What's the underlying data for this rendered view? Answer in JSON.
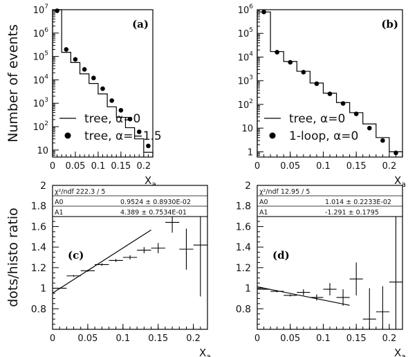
{
  "chart_data": [
    {
      "id": "a",
      "type": "histogram",
      "panel_label": "(a)",
      "ylabel": "Number of events",
      "xlabel": "X",
      "xlabel_sub": "a",
      "xlim": [
        0,
        0.22
      ],
      "ylim": [
        5,
        10000000
      ],
      "yscale": "log",
      "xticks": [
        "0",
        "0.05",
        "0.1",
        "0.15",
        "0.2"
      ],
      "yticks": [
        {
          "v": 10,
          "l": "10",
          "e": ""
        },
        {
          "v": 100,
          "l": "10",
          "e": "2"
        },
        {
          "v": 1000,
          "l": "10",
          "e": "3"
        },
        {
          "v": 10000,
          "l": "10",
          "e": "4"
        },
        {
          "v": 100000,
          "l": "10",
          "e": "5"
        },
        {
          "v": 1000000,
          "l": "10",
          "e": "6"
        },
        {
          "v": 10000000,
          "l": "10",
          "e": "7"
        }
      ],
      "histogram": {
        "name": "tree, α=0",
        "bin_edges": [
          0,
          0.02,
          0.04,
          0.06,
          0.08,
          0.1,
          0.12,
          0.14,
          0.16,
          0.18,
          0.2,
          0.22
        ],
        "values": [
          10000000,
          150000,
          55000,
          18000,
          7000,
          2500,
          700,
          250,
          90,
          30,
          8
        ]
      },
      "points": {
        "name": "tree, α=−1.5",
        "x": [
          0.01,
          0.03,
          0.05,
          0.07,
          0.09,
          0.11,
          0.13,
          0.15,
          0.17,
          0.19,
          0.21
        ],
        "y": [
          9000000,
          200000,
          75000,
          28000,
          12000,
          4200,
          1300,
          500,
          210,
          60,
          15
        ]
      },
      "legend": [
        {
          "marker": "line",
          "text": "tree, α=0"
        },
        {
          "marker": "dot",
          "text": "tree, α=−1.5"
        }
      ]
    },
    {
      "id": "b",
      "type": "histogram",
      "panel_label": "(b)",
      "ylabel": "",
      "xlabel": "X",
      "xlabel_sub": "a",
      "xlim": [
        0,
        0.22
      ],
      "ylim": [
        0.6,
        1000000
      ],
      "yscale": "log",
      "xticks": [
        "0",
        "0.05",
        "0.1",
        "0.15",
        "0.2"
      ],
      "yticks": [
        {
          "v": 1,
          "l": "1",
          "e": ""
        },
        {
          "v": 10,
          "l": "10",
          "e": ""
        },
        {
          "v": 100,
          "l": "10",
          "e": "2"
        },
        {
          "v": 1000,
          "l": "10",
          "e": "3"
        },
        {
          "v": 10000,
          "l": "10",
          "e": "4"
        },
        {
          "v": 100000,
          "l": "10",
          "e": "5"
        },
        {
          "v": 1000000,
          "l": "10",
          "e": "6"
        }
      ],
      "histogram": {
        "name": "tree, α=0",
        "bin_edges": [
          0,
          0.02,
          0.04,
          0.06,
          0.08,
          0.1,
          0.12,
          0.14,
          0.16,
          0.18,
          0.2,
          0.22
        ],
        "values": [
          800000,
          17000,
          6500,
          2500,
          800,
          300,
          120,
          45,
          15,
          4,
          1
        ]
      },
      "points": {
        "name": "1-loop, α=0",
        "x": [
          0.01,
          0.03,
          0.05,
          0.07,
          0.09,
          0.11,
          0.13,
          0.15,
          0.17,
          0.19,
          0.21
        ],
        "y": [
          800000,
          16000,
          6000,
          2300,
          750,
          280,
          110,
          40,
          10,
          3,
          0.9
        ]
      },
      "legend": [
        {
          "marker": "line",
          "text": "tree, α=0"
        },
        {
          "marker": "dot",
          "text": "1-loop, α=0"
        }
      ]
    },
    {
      "id": "c",
      "type": "scatter",
      "panel_label": "(c)",
      "ylabel": "dots/histo ratio",
      "xlabel": "X",
      "xlabel_sub": "a",
      "xlim": [
        0,
        0.22
      ],
      "ylim": [
        0.6,
        2.0
      ],
      "xticks": [
        "0",
        "0.05",
        "0.1",
        "0.15",
        "0.2"
      ],
      "yticks": [
        "0.8",
        "1",
        "1.2",
        "1.4",
        "1.6",
        "1.8",
        "2"
      ],
      "stats": {
        "chi2_label": "χ²/ndf 222.3   /   5",
        "a0_name": "A0",
        "a0_value": "0.9524 ±  0.8930E-02",
        "a1_name": "A1",
        "a1_value": "4.389 ±  0.7534E-01"
      },
      "fit_line": {
        "a0": 0.9524,
        "a1": 4.389,
        "xrange": [
          0,
          0.14
        ]
      },
      "points": [
        {
          "x": 0.01,
          "y": 1.0,
          "xerr": 0.01,
          "yerr": 0.005
        },
        {
          "x": 0.03,
          "y": 1.12,
          "xerr": 0.01,
          "yerr": 0.008
        },
        {
          "x": 0.05,
          "y": 1.17,
          "xerr": 0.01,
          "yerr": 0.01
        },
        {
          "x": 0.07,
          "y": 1.23,
          "xerr": 0.01,
          "yerr": 0.012
        },
        {
          "x": 0.09,
          "y": 1.27,
          "xerr": 0.01,
          "yerr": 0.015
        },
        {
          "x": 0.11,
          "y": 1.3,
          "xerr": 0.01,
          "yerr": 0.02
        },
        {
          "x": 0.13,
          "y": 1.37,
          "xerr": 0.01,
          "yerr": 0.03
        },
        {
          "x": 0.15,
          "y": 1.39,
          "xerr": 0.01,
          "yerr": 0.05
        },
        {
          "x": 0.17,
          "y": 1.64,
          "xerr": 0.01,
          "yerr": 0.1
        },
        {
          "x": 0.19,
          "y": 1.38,
          "xerr": 0.01,
          "yerr": 0.2
        },
        {
          "x": 0.21,
          "y": 1.42,
          "xerr": 0.01,
          "yerr": 0.5
        }
      ]
    },
    {
      "id": "d",
      "type": "scatter",
      "panel_label": "(d)",
      "ylabel": "",
      "xlabel": "X",
      "xlabel_sub": "a",
      "xlim": [
        0,
        0.22
      ],
      "ylim": [
        0.6,
        2.0
      ],
      "xticks": [
        "0",
        "0.05",
        "0.1",
        "0.15",
        "0.2"
      ],
      "yticks": [
        "0.8",
        "1",
        "1.2",
        "1.4",
        "1.6",
        "1.8",
        "2"
      ],
      "stats": {
        "chi2_label": "χ²/ndf 12.95   /   5",
        "a0_name": "A0",
        "a0_value": "1.014 ±  0.2233E-02",
        "a1_name": "A1",
        "a1_value": "-1.291 ±     0.1795"
      },
      "fit_line": {
        "a0": 1.014,
        "a1": -1.291,
        "xrange": [
          0,
          0.14
        ]
      },
      "points": [
        {
          "x": 0.01,
          "y": 0.99,
          "xerr": 0.01,
          "yerr": 0.005
        },
        {
          "x": 0.03,
          "y": 0.97,
          "xerr": 0.01,
          "yerr": 0.01
        },
        {
          "x": 0.05,
          "y": 0.93,
          "xerr": 0.01,
          "yerr": 0.01
        },
        {
          "x": 0.07,
          "y": 0.96,
          "xerr": 0.01,
          "yerr": 0.03
        },
        {
          "x": 0.09,
          "y": 0.91,
          "xerr": 0.01,
          "yerr": 0.03
        },
        {
          "x": 0.11,
          "y": 0.99,
          "xerr": 0.01,
          "yerr": 0.06
        },
        {
          "x": 0.13,
          "y": 0.91,
          "xerr": 0.01,
          "yerr": 0.08
        },
        {
          "x": 0.15,
          "y": 1.09,
          "xerr": 0.01,
          "yerr": 0.16
        },
        {
          "x": 0.17,
          "y": 0.7,
          "xerr": 0.01,
          "yerr": 0.3
        },
        {
          "x": 0.19,
          "y": 0.77,
          "xerr": 0.01,
          "yerr": 0.25
        },
        {
          "x": 0.21,
          "y": 1.06,
          "xerr": 0.01,
          "yerr": 0.9
        }
      ]
    }
  ]
}
